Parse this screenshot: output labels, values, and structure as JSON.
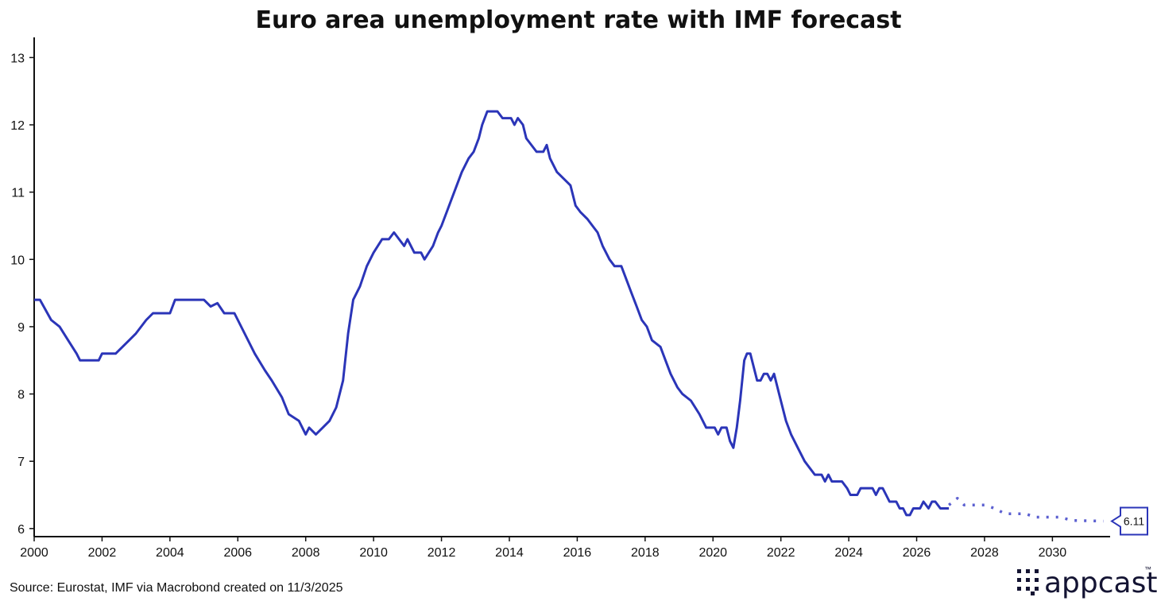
{
  "chart_data": {
    "type": "line",
    "title": "Euro area unemployment rate with IMF forecast",
    "xlabel": "",
    "ylabel": "",
    "xlim": [
      2000,
      2031.7
    ],
    "ylim": [
      5.88,
      13.3
    ],
    "xticks": [
      2000,
      2002,
      2004,
      2006,
      2008,
      2010,
      2012,
      2014,
      2016,
      2018,
      2020,
      2022,
      2024,
      2026,
      2028,
      2030
    ],
    "xtick_labels": [
      "2000",
      "2002",
      "2004",
      "2006",
      "2008",
      "2010",
      "2012",
      "2014",
      "2016",
      "2018",
      "2020",
      "2022",
      "2024",
      "2026",
      "2028",
      "2030"
    ],
    "yticks": [
      6,
      7,
      8,
      9,
      10,
      11,
      12,
      13
    ],
    "ytick_labels": [
      "6",
      "7",
      "8",
      "9",
      "10",
      "11",
      "12",
      "13"
    ],
    "grid": false,
    "series": [
      {
        "name": "Euro area unemployment rate",
        "style": "solid",
        "color": "#2B35B8",
        "points": [
          [
            2000.0,
            9.4
          ],
          [
            2000.17,
            9.4
          ],
          [
            2000.5,
            9.1
          ],
          [
            2000.75,
            9.0
          ],
          [
            2001.0,
            8.8
          ],
          [
            2001.25,
            8.6
          ],
          [
            2001.35,
            8.5
          ],
          [
            2001.9,
            8.5
          ],
          [
            2002.0,
            8.6
          ],
          [
            2002.4,
            8.6
          ],
          [
            2002.8,
            8.8
          ],
          [
            2003.0,
            8.9
          ],
          [
            2003.3,
            9.1
          ],
          [
            2003.5,
            9.2
          ],
          [
            2004.0,
            9.2
          ],
          [
            2004.15,
            9.4
          ],
          [
            2005.0,
            9.4
          ],
          [
            2005.2,
            9.3
          ],
          [
            2005.4,
            9.35
          ],
          [
            2005.6,
            9.2
          ],
          [
            2005.9,
            9.2
          ],
          [
            2006.0,
            9.1
          ],
          [
            2006.5,
            8.6
          ],
          [
            2006.8,
            8.35
          ],
          [
            2007.0,
            8.2
          ],
          [
            2007.3,
            7.95
          ],
          [
            2007.5,
            7.7
          ],
          [
            2007.8,
            7.6
          ],
          [
            2008.0,
            7.4
          ],
          [
            2008.1,
            7.5
          ],
          [
            2008.3,
            7.4
          ],
          [
            2008.5,
            7.5
          ],
          [
            2008.7,
            7.6
          ],
          [
            2008.9,
            7.8
          ],
          [
            2009.1,
            8.2
          ],
          [
            2009.25,
            8.9
          ],
          [
            2009.4,
            9.4
          ],
          [
            2009.6,
            9.6
          ],
          [
            2009.8,
            9.9
          ],
          [
            2010.0,
            10.1
          ],
          [
            2010.25,
            10.3
          ],
          [
            2010.45,
            10.3
          ],
          [
            2010.6,
            10.4
          ],
          [
            2010.75,
            10.3
          ],
          [
            2010.9,
            10.2
          ],
          [
            2011.0,
            10.3
          ],
          [
            2011.2,
            10.1
          ],
          [
            2011.4,
            10.1
          ],
          [
            2011.5,
            10.0
          ],
          [
            2011.75,
            10.2
          ],
          [
            2011.9,
            10.4
          ],
          [
            2012.0,
            10.5
          ],
          [
            2012.15,
            10.7
          ],
          [
            2012.3,
            10.9
          ],
          [
            2012.45,
            11.1
          ],
          [
            2012.6,
            11.3
          ],
          [
            2012.8,
            11.5
          ],
          [
            2012.95,
            11.6
          ],
          [
            2013.1,
            11.8
          ],
          [
            2013.2,
            12.0
          ],
          [
            2013.35,
            12.2
          ],
          [
            2013.65,
            12.2
          ],
          [
            2013.8,
            12.1
          ],
          [
            2014.05,
            12.1
          ],
          [
            2014.15,
            12.0
          ],
          [
            2014.25,
            12.1
          ],
          [
            2014.4,
            12.0
          ],
          [
            2014.5,
            11.8
          ],
          [
            2014.65,
            11.7
          ],
          [
            2014.8,
            11.6
          ],
          [
            2015.0,
            11.6
          ],
          [
            2015.1,
            11.7
          ],
          [
            2015.2,
            11.5
          ],
          [
            2015.4,
            11.3
          ],
          [
            2015.6,
            11.2
          ],
          [
            2015.8,
            11.1
          ],
          [
            2015.95,
            10.8
          ],
          [
            2016.1,
            10.7
          ],
          [
            2016.3,
            10.6
          ],
          [
            2016.45,
            10.5
          ],
          [
            2016.6,
            10.4
          ],
          [
            2016.75,
            10.2
          ],
          [
            2016.95,
            10.0
          ],
          [
            2017.1,
            9.9
          ],
          [
            2017.3,
            9.9
          ],
          [
            2017.45,
            9.7
          ],
          [
            2017.6,
            9.5
          ],
          [
            2017.75,
            9.3
          ],
          [
            2017.9,
            9.1
          ],
          [
            2018.05,
            9.0
          ],
          [
            2018.2,
            8.8
          ],
          [
            2018.45,
            8.7
          ],
          [
            2018.6,
            8.5
          ],
          [
            2018.75,
            8.3
          ],
          [
            2018.95,
            8.1
          ],
          [
            2019.1,
            8.0
          ],
          [
            2019.35,
            7.9
          ],
          [
            2019.6,
            7.7
          ],
          [
            2019.8,
            7.5
          ],
          [
            2020.05,
            7.5
          ],
          [
            2020.15,
            7.4
          ],
          [
            2020.25,
            7.5
          ],
          [
            2020.4,
            7.5
          ],
          [
            2020.5,
            7.3
          ],
          [
            2020.6,
            7.2
          ],
          [
            2020.7,
            7.5
          ],
          [
            2020.8,
            7.9
          ],
          [
            2020.92,
            8.5
          ],
          [
            2021.0,
            8.6
          ],
          [
            2021.1,
            8.6
          ],
          [
            2021.3,
            8.2
          ],
          [
            2021.4,
            8.2
          ],
          [
            2021.5,
            8.3
          ],
          [
            2021.6,
            8.3
          ],
          [
            2021.7,
            8.2
          ],
          [
            2021.8,
            8.3
          ],
          [
            2021.95,
            8.0
          ],
          [
            2022.15,
            7.6
          ],
          [
            2022.3,
            7.4
          ],
          [
            2022.5,
            7.2
          ],
          [
            2022.7,
            7.0
          ],
          [
            2022.85,
            6.9
          ],
          [
            2023.0,
            6.8
          ],
          [
            2023.2,
            6.8
          ],
          [
            2023.3,
            6.7
          ],
          [
            2023.4,
            6.8
          ],
          [
            2023.5,
            6.7
          ],
          [
            2023.8,
            6.7
          ],
          [
            2023.95,
            6.6
          ],
          [
            2024.05,
            6.5
          ],
          [
            2024.25,
            6.5
          ],
          [
            2024.35,
            6.6
          ],
          [
            2024.7,
            6.6
          ],
          [
            2024.8,
            6.5
          ],
          [
            2024.9,
            6.6
          ],
          [
            2025.0,
            6.6
          ],
          [
            2025.1,
            6.5
          ],
          [
            2025.2,
            6.4
          ],
          [
            2025.4,
            6.4
          ],
          [
            2025.5,
            6.3
          ],
          [
            2025.6,
            6.3
          ],
          [
            2025.7,
            6.2
          ],
          [
            2025.8,
            6.2
          ],
          [
            2025.9,
            6.3
          ],
          [
            2026.1,
            6.3
          ],
          [
            2026.2,
            6.4
          ],
          [
            2026.35,
            6.3
          ],
          [
            2026.45,
            6.4
          ],
          [
            2026.55,
            6.4
          ],
          [
            2026.7,
            6.3
          ],
          [
            2026.95,
            6.3
          ]
        ]
      },
      {
        "name": "IMF forecast",
        "style": "dotted",
        "color": "#5B5FD0",
        "points": [
          [
            2026.95,
            6.35
          ],
          [
            2027.2,
            6.45
          ],
          [
            2027.4,
            6.35
          ],
          [
            2028.0,
            6.35
          ],
          [
            2028.3,
            6.3
          ],
          [
            2028.6,
            6.22
          ],
          [
            2029.2,
            6.22
          ],
          [
            2029.5,
            6.17
          ],
          [
            2030.2,
            6.17
          ],
          [
            2030.6,
            6.12
          ],
          [
            2031.5,
            6.11
          ]
        ]
      }
    ],
    "annotations": [
      {
        "label": "6.11",
        "value": 6.11
      }
    ]
  },
  "footer": {
    "source": "Source: Eurostat, IMF via Macrobond created on 11/3/2025"
  },
  "brand": {
    "name": "appcast",
    "trademark": "™",
    "color": "#141433"
  }
}
